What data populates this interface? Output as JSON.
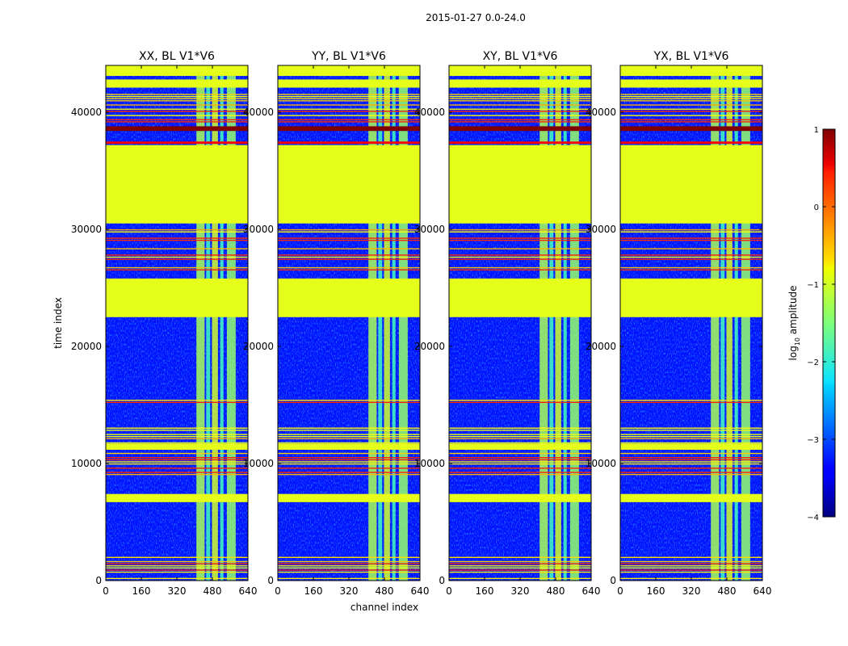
{
  "figure": {
    "suptitle": "2015-01-27 0.0-24.0",
    "colormap": "jet"
  },
  "chart_data": {
    "type": "heatmap",
    "xlabel": "channel index",
    "ylabel": "time index",
    "xlim": [
      0,
      640
    ],
    "ylim": [
      0,
      44000
    ],
    "xticks": [
      0,
      160,
      320,
      480,
      640
    ],
    "yticks": [
      0,
      10000,
      20000,
      30000,
      40000
    ],
    "panels": [
      {
        "title": "XX, BL V1*V6"
      },
      {
        "title": "YY, BL V1*V6"
      },
      {
        "title": "XY, BL V1*V6"
      },
      {
        "title": "YX, BL V1*V6"
      }
    ],
    "colorbar": {
      "label": "log",
      "label_sub": "10",
      "label_rest": " amplitude",
      "vmin": -4,
      "vmax": 1,
      "ticks": [
        1,
        0,
        -1,
        -2,
        -3,
        -4
      ],
      "tick_labels": [
        "1",
        "0",
        "−1",
        "−2",
        "−3",
        "−4"
      ]
    },
    "flagged_time_ranges": [
      {
        "t0": 30500,
        "t1": 37200,
        "log_amp": -1
      },
      {
        "t0": 22500,
        "t1": 25800,
        "log_amp": -1
      },
      {
        "t0": 42100,
        "t1": 42800,
        "log_amp": -1
      },
      {
        "t0": 43100,
        "t1": 44000,
        "log_amp": -1
      },
      {
        "t0": 6700,
        "t1": 7400,
        "log_amp": -1
      },
      {
        "t0": 11200,
        "t1": 11700,
        "log_amp": -1
      }
    ],
    "saturated_time_ranges": [
      {
        "t0": 38400,
        "t1": 38800,
        "log_amp": 1
      },
      {
        "t0": 37300,
        "t1": 37500,
        "log_amp": 0.4
      }
    ],
    "rfi_channel_ranges": [
      {
        "c0": 408,
        "c1": 445,
        "log_amp": -1.3
      },
      {
        "c0": 452,
        "c1": 470,
        "log_amp": -1.8
      },
      {
        "c0": 478,
        "c1": 505,
        "log_amp": -1.1
      },
      {
        "c0": 515,
        "c1": 530,
        "log_amp": -1.8
      },
      {
        "c0": 545,
        "c1": 585,
        "log_amp": -1.4
      }
    ],
    "background_log_amp": -3.3
  }
}
